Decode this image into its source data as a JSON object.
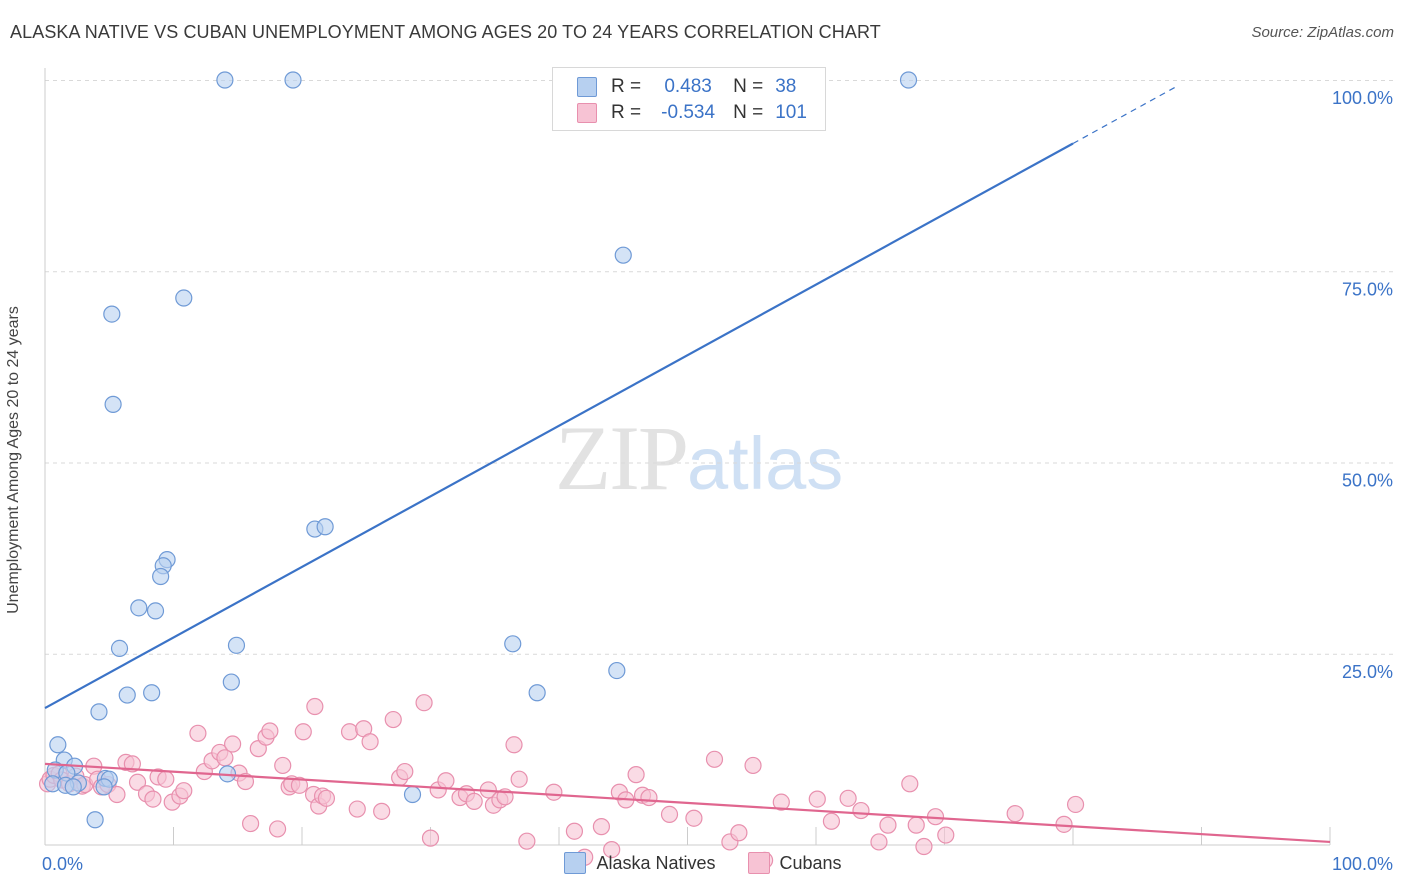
{
  "title": "ALASKA NATIVE VS CUBAN UNEMPLOYMENT AMONG AGES 20 TO 24 YEARS CORRELATION CHART",
  "source": "Source: ZipAtlas.com",
  "watermark": {
    "zip": "ZIP",
    "atlas": "atlas"
  },
  "colors": {
    "blue": "#3b73c7",
    "blue_fill": "#b7d0f0",
    "blue_stroke": "#6f9ad6",
    "pink": "#e0668f",
    "pink_fill": "#f7c3d4",
    "pink_stroke": "#e890ae",
    "grid": "#d9d9d9"
  },
  "legend": [
    {
      "r_label": "R =",
      "r_value": "0.483",
      "n_label": "N =",
      "n_value": "38"
    },
    {
      "r_label": "R =",
      "r_value": "-0.534",
      "n_label": "N =",
      "n_value": "101"
    }
  ],
  "bottom_legend": [
    "Alaska Natives",
    "Cubans"
  ],
  "chart_data": {
    "type": "scatter",
    "title": "ALASKA NATIVE VS CUBAN UNEMPLOYMENT AMONG AGES 20 TO 24 YEARS CORRELATION CHART",
    "xlabel": "",
    "ylabel": "Unemployment Among Ages 20 to 24 years",
    "xlim": [
      0,
      100
    ],
    "ylim": [
      0,
      100
    ],
    "x_tick_labels": [
      "0.0%",
      "100.0%"
    ],
    "y_tick_labels": [
      "25.0%",
      "50.0%",
      "75.0%",
      "100.0%"
    ],
    "y_ticks": [
      25,
      50,
      75,
      100
    ],
    "grid": true,
    "legend_position": "top-center",
    "series": [
      {
        "name": "Alaska Natives",
        "r": 0.483,
        "n": 38,
        "points": [
          [
            14,
            100
          ],
          [
            19.3,
            100
          ],
          [
            67.2,
            100
          ],
          [
            45,
            77.1
          ],
          [
            10.8,
            71.5
          ],
          [
            5.2,
            69.4
          ],
          [
            5.3,
            57.6
          ],
          [
            21,
            41.3
          ],
          [
            21.8,
            41.6
          ],
          [
            9.5,
            37.3
          ],
          [
            9.2,
            36.5
          ],
          [
            9.0,
            35.1
          ],
          [
            7.3,
            31.0
          ],
          [
            8.6,
            30.6
          ],
          [
            14.9,
            26.1
          ],
          [
            36.4,
            26.3
          ],
          [
            5.8,
            25.7
          ],
          [
            44.5,
            22.8
          ],
          [
            14.5,
            21.3
          ],
          [
            8.3,
            19.9
          ],
          [
            6.4,
            19.6
          ],
          [
            38.3,
            19.9
          ],
          [
            4.2,
            17.4
          ],
          [
            1.0,
            13.1
          ],
          [
            1.5,
            11.1
          ],
          [
            2.3,
            10.3
          ],
          [
            0.8,
            9.8
          ],
          [
            1.7,
            9.4
          ],
          [
            4.7,
            8.7
          ],
          [
            5.0,
            8.6
          ],
          [
            2.6,
            8.1
          ],
          [
            0.6,
            8.0
          ],
          [
            1.6,
            7.8
          ],
          [
            2.2,
            7.6
          ],
          [
            4.6,
            7.6
          ],
          [
            14.2,
            9.3
          ],
          [
            28.6,
            6.6
          ],
          [
            3.9,
            3.3
          ]
        ],
        "trend": {
          "x": [
            0,
            80,
            88
          ],
          "y": [
            17.9,
            91.7,
            99.1
          ],
          "dashed_from": 80
        }
      },
      {
        "name": "Cubans",
        "r": -0.534,
        "n": 101,
        "points": [
          [
            0.2,
            8.0
          ],
          [
            0.4,
            8.6
          ],
          [
            0.7,
            9.1
          ],
          [
            1.1,
            9.3
          ],
          [
            1.3,
            8.5
          ],
          [
            1.9,
            8.0
          ],
          [
            2.4,
            9.0
          ],
          [
            2.9,
            7.7
          ],
          [
            3.1,
            7.9
          ],
          [
            3.8,
            10.3
          ],
          [
            4.1,
            8.6
          ],
          [
            4.4,
            7.6
          ],
          [
            4.9,
            7.9
          ],
          [
            5.6,
            6.6
          ],
          [
            6.3,
            10.8
          ],
          [
            6.8,
            10.6
          ],
          [
            7.2,
            8.2
          ],
          [
            7.9,
            6.7
          ],
          [
            8.4,
            6.0
          ],
          [
            8.8,
            8.9
          ],
          [
            9.4,
            8.6
          ],
          [
            9.9,
            5.6
          ],
          [
            10.5,
            6.4
          ],
          [
            10.8,
            7.1
          ],
          [
            11.9,
            14.6
          ],
          [
            12.4,
            9.6
          ],
          [
            13.0,
            11.0
          ],
          [
            13.6,
            12.1
          ],
          [
            14.0,
            11.4
          ],
          [
            14.6,
            13.2
          ],
          [
            15.1,
            9.4
          ],
          [
            15.6,
            8.3
          ],
          [
            16.0,
            2.8
          ],
          [
            16.6,
            12.6
          ],
          [
            17.2,
            14.1
          ],
          [
            17.5,
            14.9
          ],
          [
            18.1,
            2.1
          ],
          [
            18.5,
            10.4
          ],
          [
            19.0,
            7.6
          ],
          [
            19.2,
            8.0
          ],
          [
            19.8,
            7.8
          ],
          [
            20.1,
            14.8
          ],
          [
            20.9,
            6.6
          ],
          [
            21.3,
            5.1
          ],
          [
            21.6,
            6.4
          ],
          [
            21.9,
            6.1
          ],
          [
            21.0,
            18.1
          ],
          [
            23.7,
            14.8
          ],
          [
            24.3,
            4.7
          ],
          [
            24.8,
            15.2
          ],
          [
            25.3,
            13.5
          ],
          [
            26.2,
            4.4
          ],
          [
            27.1,
            16.4
          ],
          [
            27.6,
            8.8
          ],
          [
            28.0,
            9.6
          ],
          [
            29.5,
            18.6
          ],
          [
            30.0,
            0.9
          ],
          [
            30.6,
            7.2
          ],
          [
            31.2,
            8.4
          ],
          [
            32.3,
            6.2
          ],
          [
            32.8,
            6.7
          ],
          [
            33.4,
            5.7
          ],
          [
            34.5,
            7.2
          ],
          [
            34.9,
            5.2
          ],
          [
            35.4,
            5.9
          ],
          [
            35.8,
            6.3
          ],
          [
            36.5,
            13.1
          ],
          [
            36.9,
            8.6
          ],
          [
            37.5,
            0.5
          ],
          [
            39.6,
            6.9
          ],
          [
            41.2,
            1.8
          ],
          [
            42.0,
            -1.6
          ],
          [
            43.3,
            2.4
          ],
          [
            44.1,
            -0.6
          ],
          [
            44.7,
            6.9
          ],
          [
            45.2,
            5.9
          ],
          [
            46.0,
            9.2
          ],
          [
            46.5,
            6.5
          ],
          [
            47.0,
            6.2
          ],
          [
            48.6,
            4.0
          ],
          [
            50.5,
            3.5
          ],
          [
            52.1,
            11.2
          ],
          [
            53.3,
            0.4
          ],
          [
            54.0,
            1.6
          ],
          [
            55.1,
            10.4
          ],
          [
            56.0,
            -2.0
          ],
          [
            57.3,
            5.6
          ],
          [
            60.1,
            6.0
          ],
          [
            61.2,
            3.1
          ],
          [
            62.5,
            6.1
          ],
          [
            63.5,
            4.5
          ],
          [
            64.9,
            0.4
          ],
          [
            65.6,
            2.6
          ],
          [
            67.3,
            8.0
          ],
          [
            67.8,
            2.6
          ],
          [
            68.4,
            -0.2
          ],
          [
            69.3,
            3.7
          ],
          [
            70.1,
            1.3
          ],
          [
            75.5,
            4.1
          ],
          [
            79.3,
            2.7
          ],
          [
            80.2,
            5.3
          ]
        ],
        "trend": {
          "x": [
            0,
            100
          ],
          "y": [
            10.6,
            0.4
          ]
        }
      }
    ]
  }
}
